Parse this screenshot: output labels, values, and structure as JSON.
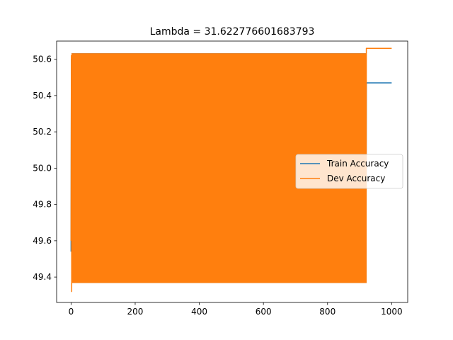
{
  "chart_data": {
    "type": "line",
    "title": "Lambda = 31.622776601683793",
    "xlabel": "",
    "ylabel": "",
    "xlim": [
      -45,
      1050
    ],
    "ylim": [
      49.26,
      50.7
    ],
    "xticks": [
      0,
      200,
      400,
      600,
      800,
      1000
    ],
    "yticks": [
      49.4,
      49.6,
      49.8,
      50.0,
      50.2,
      50.4,
      50.6
    ],
    "legend_position": "center-right",
    "grid": false,
    "series": [
      {
        "name": "Train Accuracy",
        "color": "#1f77b4",
        "x": [
          0,
          1,
          2,
          3,
          5,
          920,
          921,
          1000
        ],
        "y": [
          49.54,
          50.6,
          49.4,
          50.55,
          49.37,
          49.37,
          50.47,
          50.47
        ],
        "oscillation_range": [
          49.37,
          50.63
        ],
        "oscillation_x_range": [
          3,
          920
        ]
      },
      {
        "name": "Dev Accuracy",
        "color": "#ff7f0e",
        "x": [
          0,
          1,
          2,
          3,
          5,
          920,
          921,
          1000
        ],
        "y": [
          49.6,
          50.62,
          49.32,
          50.6,
          49.37,
          49.37,
          50.66,
          50.66
        ],
        "oscillation_range": [
          49.37,
          50.63
        ],
        "oscillation_x_range": [
          3,
          920
        ]
      }
    ]
  }
}
